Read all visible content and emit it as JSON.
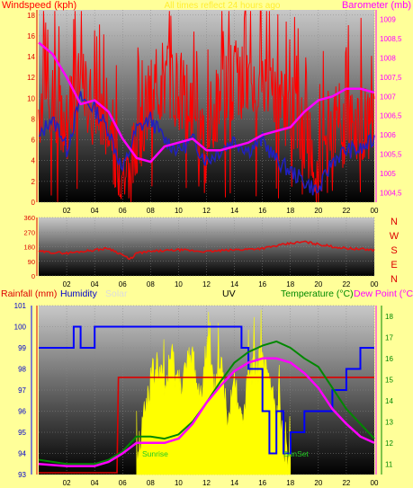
{
  "colors": {
    "background": "#ffff99",
    "windspeed": "#ff0000",
    "wind_avg": "#2020c0",
    "barometer": "#ff00ff",
    "direction": "#dd1111",
    "rainfall": "#dd0000",
    "humidity": "#0000ff",
    "solar": "#ffff00",
    "temperature": "#008800",
    "dew_point": "#ff00ff",
    "uv": "#ffff00"
  },
  "chart_data": [
    {
      "type": "line",
      "x_ticks": [
        "02",
        "04",
        "06",
        "08",
        "10",
        "12",
        "14",
        "16",
        "18",
        "20",
        "22",
        "00"
      ],
      "ylabel_left": "Windspeed (kph)",
      "ylabel_right": "Barometer (mb)",
      "top_banner": "All times reflect 24 hours ago",
      "y_left_ticks": [
        "0",
        "2",
        "4",
        "6",
        "8",
        "10",
        "12",
        "14",
        "16",
        "18"
      ],
      "y_left_range": [
        0,
        18.5
      ],
      "y_right_ticks": [
        "1004,5",
        "1005",
        "1005,5",
        "1006",
        "1006,5",
        "1007",
        "1007,5",
        "1008",
        "1008,5",
        "1009"
      ],
      "y_right_range": [
        1004.25,
        1009.25
      ],
      "x_range": [
        0,
        24
      ],
      "series": [
        {
          "name": "Windspeed (kph)",
          "x": [
            0,
            1,
            2,
            3,
            4,
            5,
            5.5,
            6,
            6.5,
            7,
            8,
            9,
            10,
            11,
            12,
            13,
            14,
            15,
            16,
            17,
            18,
            19,
            19.5,
            20,
            20.5,
            21,
            22,
            23,
            24
          ],
          "values": [
            9,
            10,
            8,
            11,
            9,
            8,
            5,
            3,
            2,
            6,
            10,
            12,
            11,
            9,
            7,
            10,
            12,
            11,
            12,
            10,
            9,
            7,
            5,
            2,
            6,
            8,
            7,
            8,
            7
          ]
        },
        {
          "name": "Wind average",
          "x": [
            0,
            0.8,
            1.5,
            2,
            3,
            4,
            5,
            5.5,
            6,
            7,
            8,
            9,
            10,
            11,
            12,
            13,
            14,
            15,
            16,
            17,
            18,
            19,
            20,
            21,
            22,
            23,
            24
          ],
          "values": [
            6,
            8,
            7,
            5,
            10,
            9,
            7,
            5,
            3,
            7,
            8,
            6,
            5,
            6,
            4,
            5,
            6,
            5,
            6,
            4,
            3,
            2,
            1,
            4,
            5,
            5,
            6
          ]
        },
        {
          "name": "Barometer (mb)",
          "x": [
            0,
            1,
            2,
            3,
            4,
            5,
            6,
            7,
            8,
            9,
            10,
            11,
            12,
            13,
            14,
            15,
            16,
            17,
            18,
            19,
            20,
            21,
            22,
            23,
            24
          ],
          "values": [
            1008.4,
            1008.1,
            1007.5,
            1006.8,
            1006.9,
            1006.6,
            1005.9,
            1005.4,
            1005.3,
            1005.7,
            1005.8,
            1005.9,
            1005.6,
            1005.6,
            1005.7,
            1005.8,
            1006.0,
            1006.1,
            1006.2,
            1006.6,
            1006.9,
            1007.0,
            1007.2,
            1007.2,
            1007.1
          ]
        }
      ]
    },
    {
      "type": "line",
      "x_ticks": [
        "02",
        "04",
        "06",
        "08",
        "10",
        "12",
        "14",
        "16",
        "18",
        "20",
        "22",
        "00"
      ],
      "y_ticks": [
        "0",
        "90",
        "180",
        "270",
        "360"
      ],
      "y_range": [
        0,
        360
      ],
      "direction_labels": [
        "N",
        "W",
        "S",
        "E",
        "N"
      ],
      "series": [
        {
          "name": "Wind direction",
          "x": [
            0,
            2,
            4,
            5,
            6,
            6.5,
            7,
            8,
            10,
            12,
            14,
            16,
            18,
            19,
            20,
            21,
            22,
            24
          ],
          "values": [
            150,
            140,
            160,
            170,
            130,
            100,
            140,
            150,
            160,
            150,
            160,
            170,
            200,
            210,
            195,
            180,
            170,
            160
          ]
        }
      ]
    },
    {
      "type": "line",
      "labels": {
        "rainfall": "Rainfall (mm)",
        "humidity": "Humidity",
        "solar": "Solar",
        "uv": "UV",
        "temperature": "Temperature (°C)",
        "dew_point": "Dew Point (°C)",
        "sunrise": "Sunrise",
        "sunset": "SunSet"
      },
      "x_ticks": [
        "02",
        "04",
        "06",
        "08",
        "10",
        "12",
        "14",
        "16",
        "18",
        "20",
        "22",
        "00"
      ],
      "x_range": [
        0,
        24
      ],
      "y_left_ticks": [
        "93",
        "94",
        "95",
        "96",
        "97",
        "98",
        "99",
        "100",
        "101"
      ],
      "y_left_range": [
        93,
        101
      ],
      "y_right_ticks": [
        "11",
        "12",
        "13",
        "14",
        "15",
        "16",
        "17",
        "18"
      ],
      "y_right_range": [
        10.5,
        18.5
      ],
      "series": [
        {
          "name": "Humidity",
          "x": [
            0,
            2,
            2.5,
            3,
            4,
            6,
            8,
            10,
            11,
            12,
            14,
            14.5,
            15,
            16,
            16.5,
            17,
            17.5,
            18,
            19,
            20,
            21,
            22,
            22.5,
            23,
            24
          ],
          "values": [
            99,
            99,
            100,
            99,
            100,
            100,
            100,
            100,
            100,
            100,
            100,
            99,
            98,
            96,
            94,
            96,
            94,
            95,
            96,
            96,
            97,
            98,
            98,
            99,
            99
          ]
        },
        {
          "name": "Temperature (°C)",
          "x": [
            0,
            2,
            4,
            5,
            6,
            7,
            8,
            9,
            10,
            11,
            12,
            13,
            14,
            15,
            16,
            17,
            18,
            19,
            20,
            21,
            22,
            23,
            24
          ],
          "values": [
            11.2,
            11.0,
            11.0,
            11.2,
            11.6,
            12.3,
            12.3,
            12.2,
            12.4,
            13.0,
            13.9,
            14.9,
            15.8,
            16.3,
            16.6,
            16.8,
            16.5,
            16.0,
            15.6,
            14.6,
            13.6,
            12.9,
            12.2
          ]
        },
        {
          "name": "Dew Point (°C)",
          "x": [
            0,
            2,
            4,
            5,
            6,
            7,
            8,
            9,
            10,
            11,
            12,
            13,
            14,
            15,
            16,
            17,
            18,
            19,
            20,
            21,
            22,
            23,
            24
          ],
          "values": [
            11.0,
            10.9,
            10.9,
            11.1,
            11.5,
            12.0,
            12.0,
            12.0,
            12.2,
            12.9,
            13.9,
            14.7,
            15.4,
            15.8,
            16.0,
            16.0,
            15.8,
            15.3,
            14.6,
            13.6,
            12.9,
            12.3,
            12.0
          ]
        },
        {
          "name": "Rainfall (mm)",
          "x": [
            0,
            5.6,
            5.7,
            24
          ],
          "values": [
            0,
            0,
            0.2,
            0.2
          ]
        }
      ],
      "solar_area": {
        "name": "Solar",
        "x": [
          7,
          7.5,
          8,
          8.5,
          9,
          9.5,
          10,
          10.5,
          11,
          11.5,
          12,
          12.5,
          13,
          13.5,
          14,
          14.5,
          15,
          15.5,
          16,
          16.5,
          17,
          17.5,
          18
        ],
        "values": [
          0.05,
          0.35,
          0.55,
          0.65,
          0.5,
          0.7,
          0.55,
          0.6,
          0.72,
          0.45,
          0.75,
          0.5,
          0.68,
          0.35,
          0.6,
          0.3,
          0.55,
          0.62,
          0.68,
          0.55,
          0.35,
          0.2,
          0.05
        ]
      }
    }
  ]
}
